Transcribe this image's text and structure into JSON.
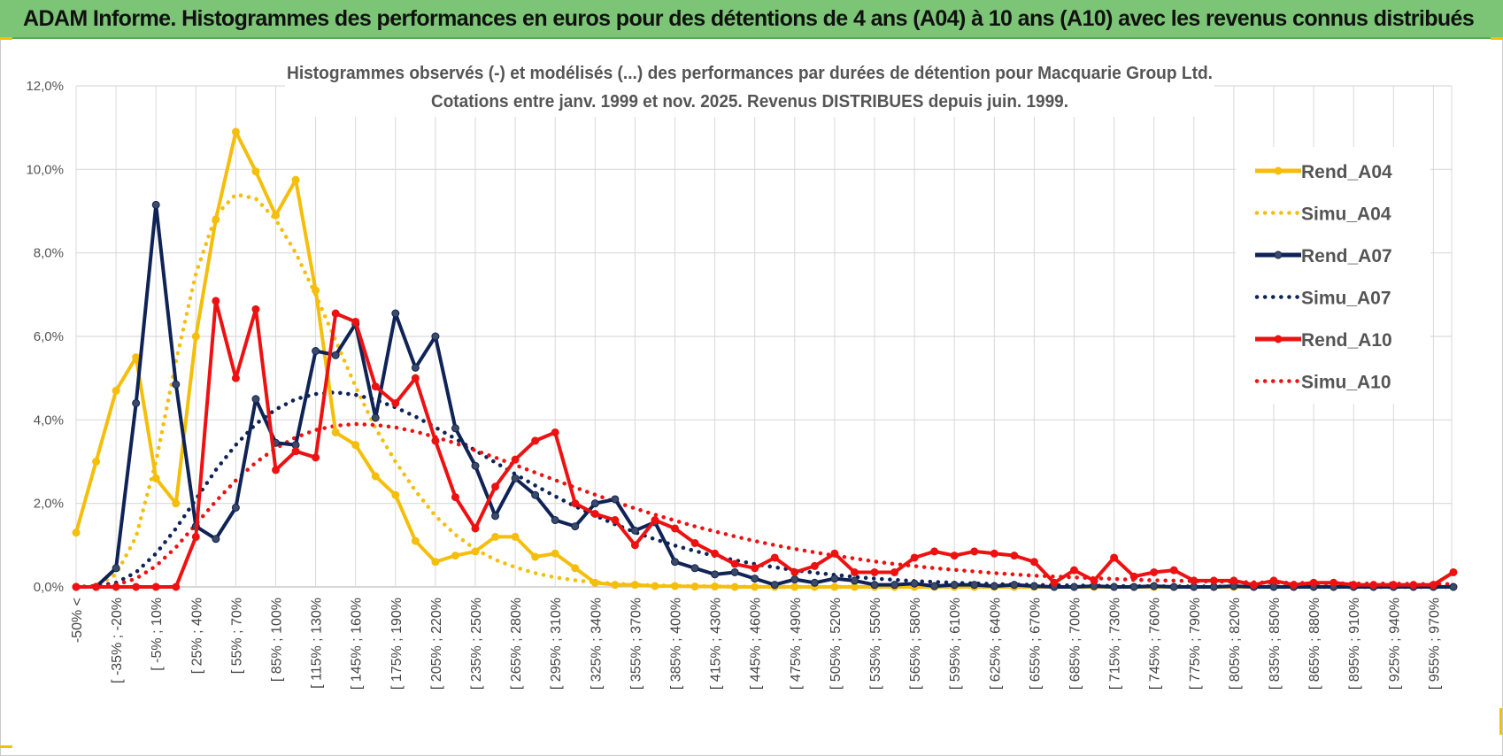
{
  "banner": {
    "title": "ADAM Informe. Histogrammes des performances en euros pour des détentions de 4 ans (A04) à 10 ans (A10) avec les revenus connus distribués"
  },
  "chart_data": {
    "type": "line",
    "title": "Histogrammes observés (-) et modélisés (...) des performances par durées de détention pour Macquarie Group Ltd.",
    "subtitle": "Cotations entre janv. 1999 et nov. 2025. Revenus DISTRIBUES depuis juin. 1999.",
    "xlabel": "",
    "ylabel": "",
    "ylim": [
      0,
      12
    ],
    "yticks": [
      "0,0%",
      "2,0%",
      "4,0%",
      "6,0%",
      "8,0%",
      "10,0%",
      "12,0%"
    ],
    "legend_position": "right",
    "categories": [
      "-50% <",
      "[ -50% ; -35%",
      "[ -35% ; -20%",
      "[ -20% ; -5%",
      "[ -5% ; 10%",
      "[ 10% ; 25%",
      "[ 25% ; 40%",
      "[ 40% ; 55%",
      "[ 55% ; 70%",
      "[ 70% ; 85%",
      "[ 85% ; 100%",
      "[ 100% ; 115%",
      "[ 115% ; 130%",
      "[ 130% ; 145%",
      "[ 145% ; 160%",
      "[ 160% ; 175%",
      "[ 175% ; 190%",
      "[ 190% ; 205%",
      "[ 205% ; 220%",
      "[ 220% ; 235%",
      "[ 235% ; 250%",
      "[ 250% ; 265%",
      "[ 265% ; 280%",
      "[ 280% ; 295%",
      "[ 295% ; 310%",
      "[ 310% ; 325%",
      "[ 325% ; 340%",
      "[ 340% ; 355%",
      "[ 355% ; 370%",
      "[ 370% ; 385%",
      "[ 385% ; 400%",
      "[ 400% ; 415%",
      "[ 415% ; 430%",
      "[ 430% ; 445%",
      "[ 445% ; 460%",
      "[ 460% ; 475%",
      "[ 475% ; 490%",
      "[ 490% ; 505%",
      "[ 505% ; 520%",
      "[ 520% ; 535%",
      "[ 535% ; 550%",
      "[ 550% ; 565%",
      "[ 565% ; 580%",
      "[ 580% ; 595%",
      "[ 595% ; 610%",
      "[ 610% ; 625%",
      "[ 625% ; 640%",
      "[ 640% ; 655%",
      "[ 655% ; 670%",
      "[ 670% ; 685%",
      "[ 685% ; 700%",
      "[ 700% ; 715%",
      "[ 715% ; 730%",
      "[ 730% ; 745%",
      "[ 745% ; 760%",
      "[ 760% ; 775%",
      "[ 775% ; 790%",
      "[ 790% ; 805%",
      "[ 805% ; 820%",
      "[ 820% ; 835%",
      "[ 835% ; 850%",
      "[ 850% ; 865%",
      "[ 865% ; 880%",
      "[ 880% ; 895%",
      "[ 895% ; 910%",
      "[ 910% ; 925%",
      "[ 925% ; 940%",
      "[ 940% ; 955%",
      "[ 955% ; 970%",
      "[ 970% ; 985%"
    ],
    "label_every": 2,
    "series": [
      {
        "name": "Rend_A04",
        "style": "solid",
        "color": "#f5be0b",
        "values": [
          1.3,
          3.0,
          4.7,
          5.5,
          2.6,
          2.0,
          6.0,
          8.8,
          10.9,
          9.95,
          8.9,
          9.75,
          7.1,
          3.7,
          3.4,
          2.65,
          2.2,
          1.1,
          0.6,
          0.75,
          0.85,
          1.2,
          1.2,
          0.72,
          0.8,
          0.45,
          0.1,
          0.05,
          0.05,
          0.02,
          0.02,
          0.01,
          0.01,
          0,
          0,
          0,
          0,
          0,
          0,
          0,
          0,
          0,
          0,
          0,
          0,
          0,
          0,
          0,
          0,
          0,
          0,
          0,
          0,
          0,
          0,
          0,
          0,
          0,
          0,
          0,
          0,
          0,
          0,
          0,
          0,
          0,
          0,
          0,
          0,
          0
        ]
      },
      {
        "name": "Simu_A04",
        "style": "dotted",
        "color": "#f5be0b",
        "values": [
          0,
          0.03,
          0.3,
          1.2,
          3.0,
          5.4,
          7.5,
          8.9,
          9.4,
          9.3,
          8.8,
          8.0,
          7.0,
          5.9,
          4.8,
          3.8,
          3.0,
          2.3,
          1.7,
          1.25,
          0.9,
          0.65,
          0.47,
          0.33,
          0.23,
          0.16,
          0.11,
          0.08,
          0.05,
          0.035,
          0.025,
          0.018,
          0.012,
          0.008,
          0.005,
          0,
          0,
          0,
          0,
          0,
          0,
          0,
          0,
          0,
          0,
          0,
          0,
          0,
          0,
          0,
          0,
          0,
          0,
          0,
          0,
          0,
          0,
          0,
          0,
          0,
          0,
          0,
          0,
          0,
          0,
          0,
          0,
          0,
          0,
          0
        ]
      },
      {
        "name": "Rend_A07",
        "style": "solid",
        "color": "#0f2356",
        "values": [
          0,
          0,
          0.45,
          4.4,
          9.15,
          4.85,
          1.45,
          1.15,
          1.9,
          4.5,
          3.45,
          3.4,
          5.65,
          5.55,
          6.3,
          4.05,
          6.55,
          5.25,
          6.0,
          3.8,
          2.9,
          1.7,
          2.6,
          2.2,
          1.6,
          1.45,
          2.0,
          2.1,
          1.35,
          1.55,
          0.6,
          0.45,
          0.3,
          0.35,
          0.2,
          0.05,
          0.18,
          0.1,
          0.2,
          0.15,
          0.05,
          0.05,
          0.08,
          0.02,
          0.05,
          0.05,
          0.02,
          0.05,
          0.02,
          0,
          0,
          0.02,
          0,
          0,
          0.02,
          0,
          0,
          0,
          0.02,
          0,
          0,
          0,
          0,
          0,
          0,
          0,
          0,
          0,
          0,
          0
        ]
      },
      {
        "name": "Simu_A07",
        "style": "dotted",
        "color": "#0f2356",
        "values": [
          0,
          0.02,
          0.1,
          0.35,
          0.8,
          1.4,
          2.1,
          2.8,
          3.4,
          3.9,
          4.25,
          4.5,
          4.62,
          4.66,
          4.6,
          4.48,
          4.3,
          4.08,
          3.82,
          3.55,
          3.27,
          2.98,
          2.7,
          2.43,
          2.17,
          1.93,
          1.71,
          1.5,
          1.31,
          1.14,
          0.99,
          0.86,
          0.74,
          0.64,
          0.55,
          0.47,
          0.4,
          0.34,
          0.29,
          0.24,
          0.2,
          0.17,
          0.14,
          0.12,
          0.1,
          0.085,
          0.07,
          0.058,
          0.048,
          0.04,
          0.033,
          0.027,
          0.022,
          0.018,
          0.015,
          0.012,
          0.01,
          0.008,
          0.006,
          0.005,
          0.004,
          0.003,
          0.002,
          0.002,
          0.001,
          0.001,
          0,
          0,
          0,
          0
        ]
      },
      {
        "name": "Rend_A10",
        "style": "solid",
        "color": "#ee1111",
        "values": [
          0,
          0,
          0,
          0,
          0,
          0,
          1.2,
          6.85,
          5.0,
          6.65,
          2.8,
          3.25,
          3.1,
          6.55,
          6.35,
          4.8,
          4.4,
          5.0,
          3.5,
          2.15,
          1.4,
          2.4,
          3.05,
          3.5,
          3.7,
          2.0,
          1.75,
          1.6,
          1.0,
          1.6,
          1.4,
          1.05,
          0.8,
          0.55,
          0.45,
          0.7,
          0.35,
          0.5,
          0.8,
          0.35,
          0.35,
          0.35,
          0.7,
          0.85,
          0.75,
          0.85,
          0.8,
          0.75,
          0.6,
          0.1,
          0.4,
          0.15,
          0.7,
          0.25,
          0.35,
          0.4,
          0.15,
          0.15,
          0.15,
          0.05,
          0.15,
          0.05,
          0.1,
          0.1,
          0.05,
          0.05,
          0.05,
          0.05,
          0.05,
          0.35
        ]
      },
      {
        "name": "Simu_A10",
        "style": "dotted",
        "color": "#ee1111",
        "values": [
          0,
          0.01,
          0.05,
          0.2,
          0.5,
          0.95,
          1.5,
          2.05,
          2.55,
          2.98,
          3.32,
          3.58,
          3.76,
          3.86,
          3.9,
          3.88,
          3.82,
          3.72,
          3.59,
          3.44,
          3.27,
          3.1,
          2.92,
          2.74,
          2.56,
          2.38,
          2.21,
          2.04,
          1.88,
          1.73,
          1.59,
          1.45,
          1.33,
          1.21,
          1.1,
          1.0,
          0.91,
          0.83,
          0.75,
          0.68,
          0.61,
          0.55,
          0.5,
          0.45,
          0.41,
          0.37,
          0.33,
          0.3,
          0.27,
          0.25,
          0.23,
          0.21,
          0.19,
          0.17,
          0.16,
          0.15,
          0.14,
          0.13,
          0.12,
          0.11,
          0.1,
          0.1,
          0.09,
          0.09,
          0.08,
          0.08,
          0.08,
          0.07,
          0.07,
          0.07
        ]
      }
    ]
  }
}
